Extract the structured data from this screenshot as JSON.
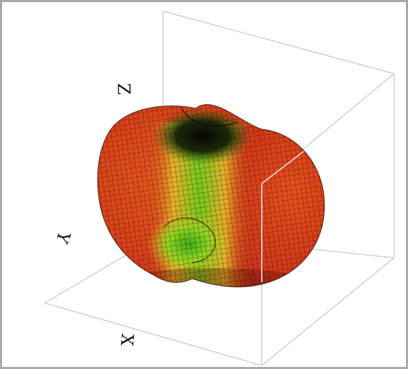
{
  "figure": {
    "axes": {
      "z_label": "Z",
      "y_label": "Y",
      "x_label": "X"
    },
    "colors": {
      "frame_border": "#a9a9a9",
      "box_lines": "#c8c8c8",
      "surface_high": "#d83a1c",
      "surface_mid": "#e6c82a",
      "surface_low": "#2fbf1c",
      "mesh": "#1a1208"
    },
    "surface": {
      "description_type": "3d-radiation-pattern-mesh",
      "colormap": [
        "red",
        "orange",
        "yellow",
        "green",
        "black"
      ]
    }
  }
}
